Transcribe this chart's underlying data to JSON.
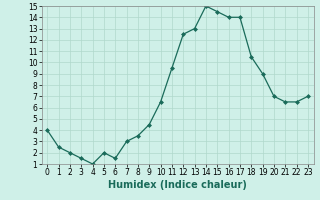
{
  "x": [
    0,
    1,
    2,
    3,
    4,
    5,
    6,
    7,
    8,
    9,
    10,
    11,
    12,
    13,
    14,
    15,
    16,
    17,
    18,
    19,
    20,
    21,
    22,
    23
  ],
  "y": [
    4.0,
    2.5,
    2.0,
    1.5,
    1.0,
    2.0,
    1.5,
    3.0,
    3.5,
    4.5,
    6.5,
    9.5,
    12.5,
    13.0,
    15.0,
    14.5,
    14.0,
    14.0,
    10.5,
    9.0,
    7.0,
    6.5,
    6.5,
    7.0
  ],
  "xlabel": "Humidex (Indice chaleur)",
  "ylim": [
    1,
    15
  ],
  "xlim": [
    -0.5,
    23.5
  ],
  "yticks": [
    1,
    2,
    3,
    4,
    5,
    6,
    7,
    8,
    9,
    10,
    11,
    12,
    13,
    14,
    15
  ],
  "xticks": [
    0,
    1,
    2,
    3,
    4,
    5,
    6,
    7,
    8,
    9,
    10,
    11,
    12,
    13,
    14,
    15,
    16,
    17,
    18,
    19,
    20,
    21,
    22,
    23
  ],
  "line_color": "#1a6b5a",
  "marker": "D",
  "marker_size": 2.0,
  "bg_color": "#cff0e8",
  "grid_color": "#b0d8cc",
  "xlabel_fontsize": 7,
  "tick_fontsize": 5.5,
  "linewidth": 0.9
}
